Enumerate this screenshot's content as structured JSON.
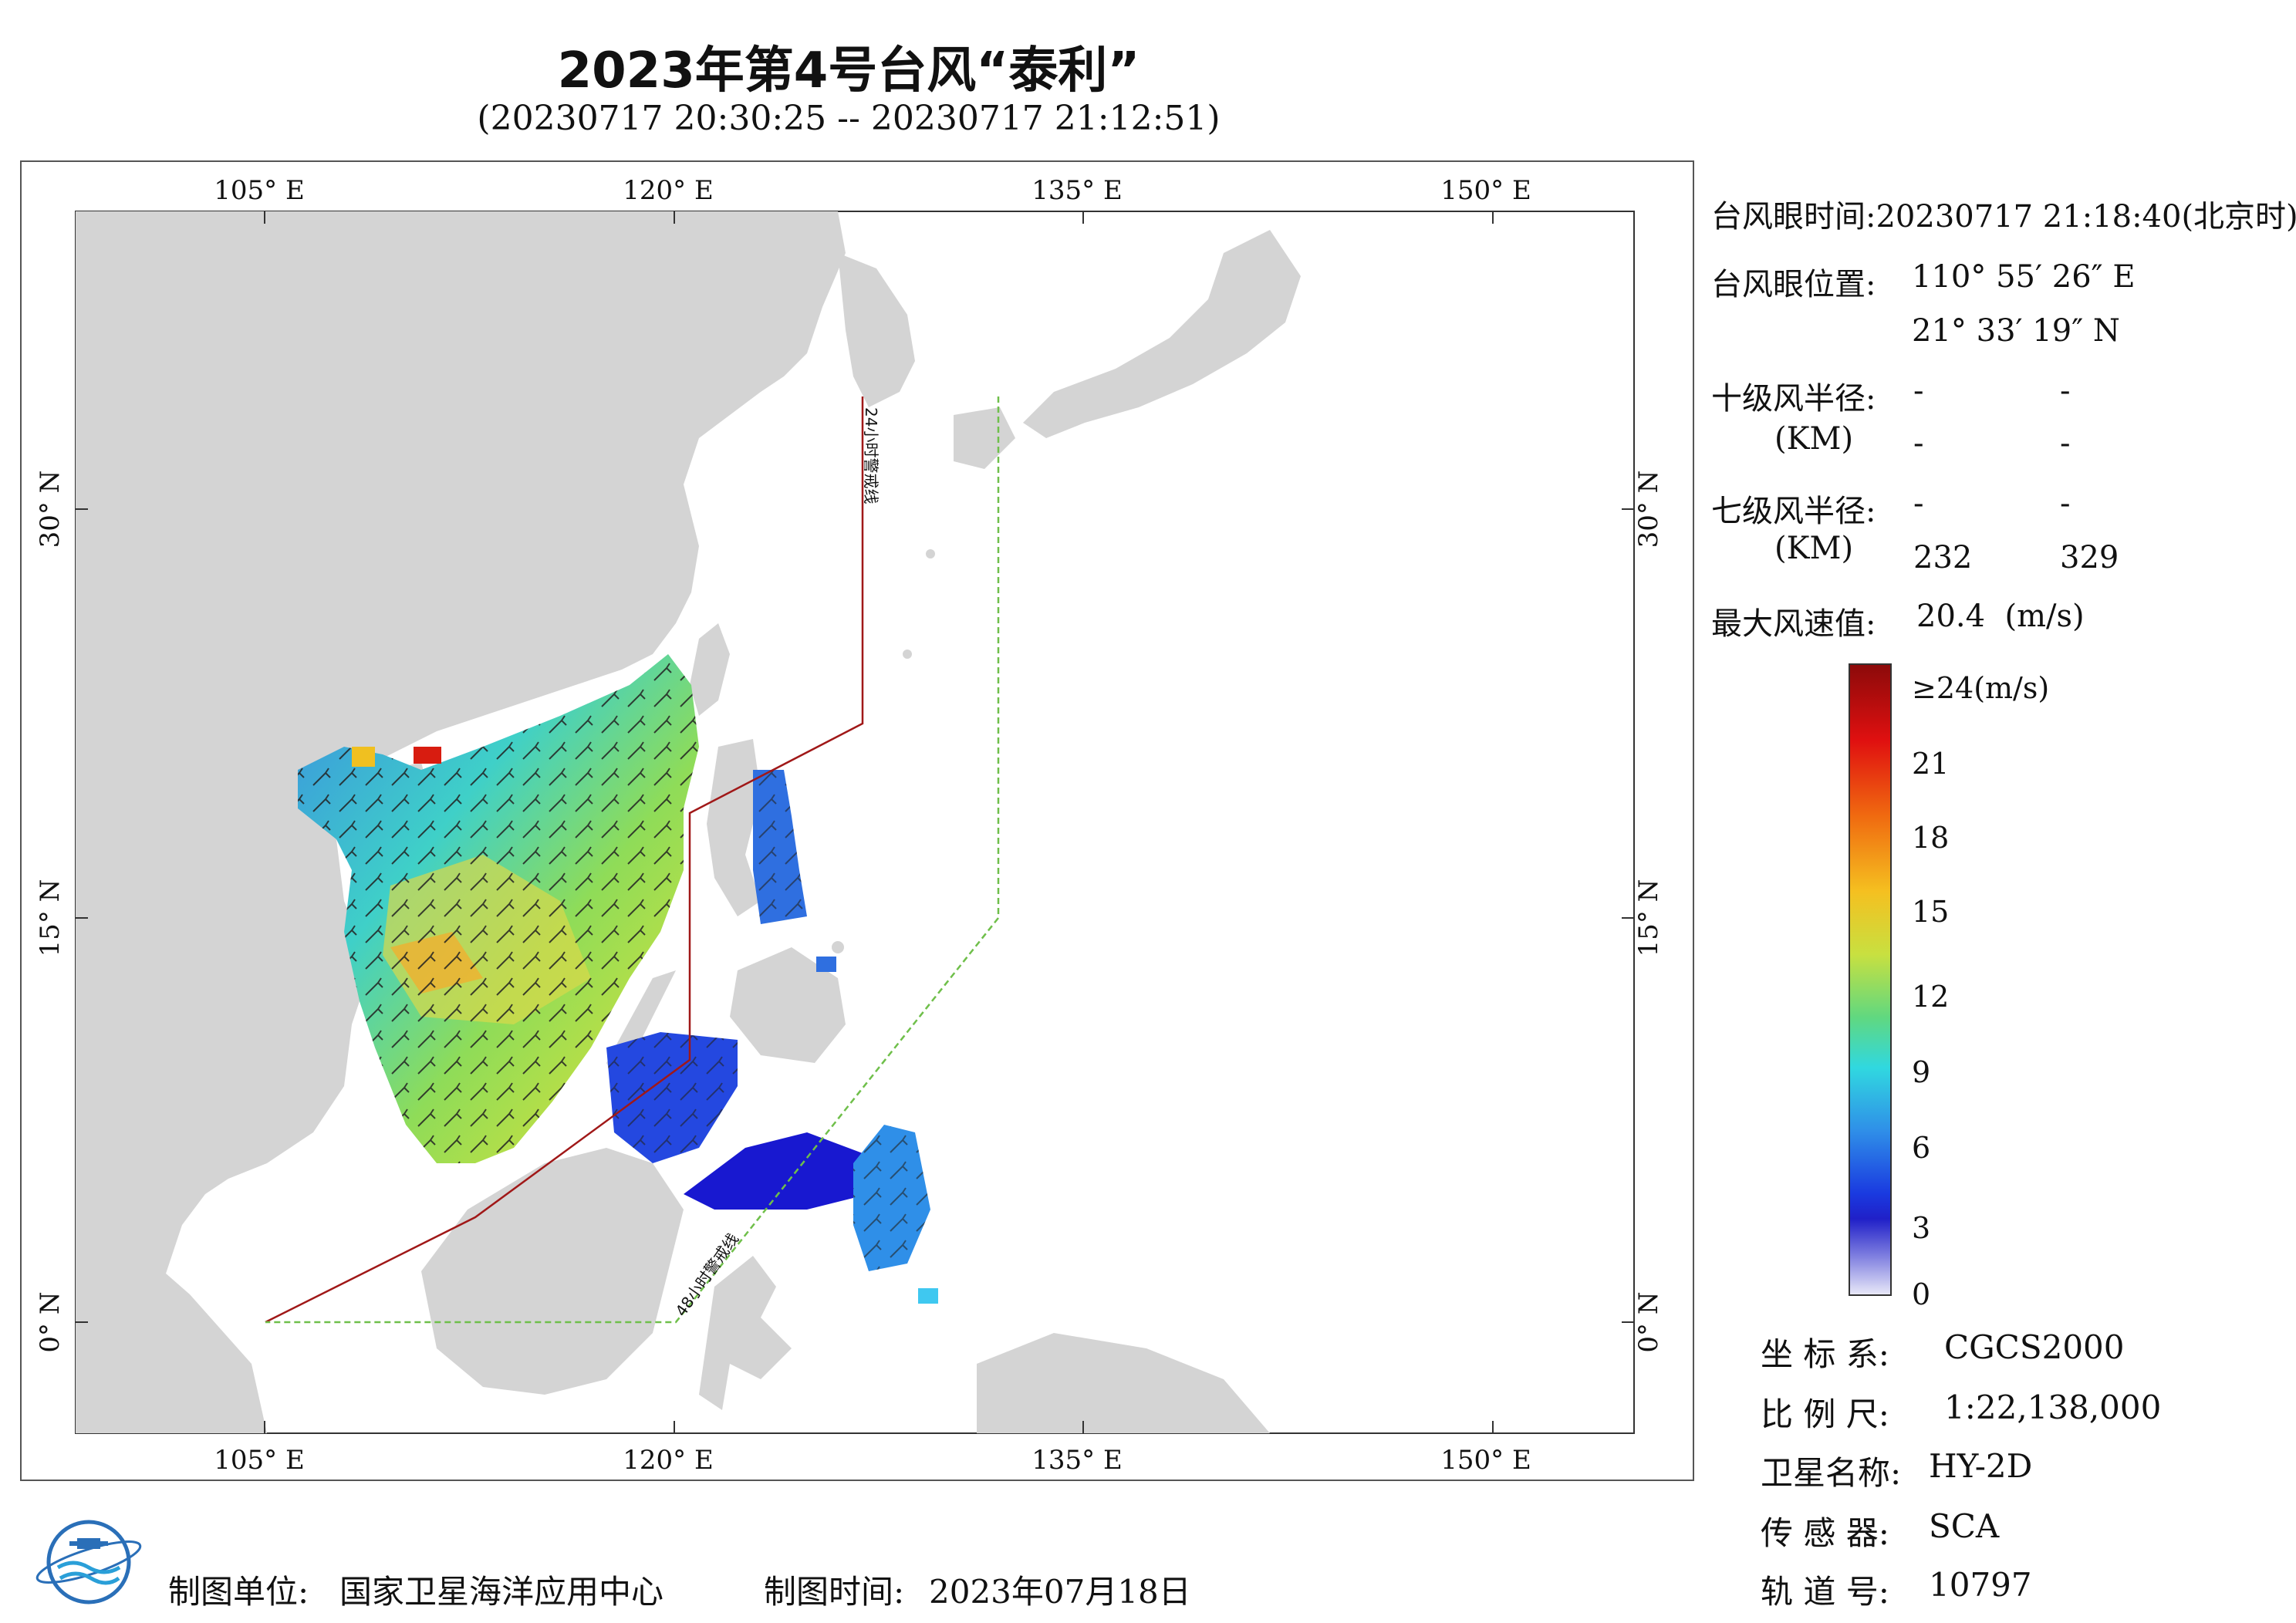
{
  "title": "2023年第4号台风“泰利”",
  "subtitle": "(20230717 20:30:25 -- 20230717 21:12:51)",
  "map": {
    "lon_ticks_top": [
      "105° E",
      "120° E",
      "135° E",
      "150° E"
    ],
    "lon_ticks_bottom": [
      "105° E",
      "120° E",
      "135° E",
      "150° E"
    ],
    "lat_ticks_left": [
      "30° N",
      "15° N",
      "0° N"
    ],
    "lat_ticks_right": [
      "30° N",
      "15° N",
      "0° N"
    ],
    "line_24h_label": "24小时警戒线",
    "line_48h_label": "48小时警戒线",
    "colors": {
      "land": "#d4d4d4",
      "ocean": "#ffffff",
      "line_24h": "#a01818",
      "line_48h": "#6fbf4a"
    }
  },
  "info": {
    "eye_time_label": "台风眼时间:",
    "eye_time_value": "20230717 21:18:40(北京时)",
    "eye_pos_label": "台风眼位置:",
    "eye_lon": "110° 55′ 26″ E",
    "eye_lat": "21° 33′ 19″ N",
    "r10_label": "十级风半径:",
    "r10_unit": "(KM)",
    "r10_values": [
      "-",
      "-",
      "-",
      "-"
    ],
    "r7_label": "七级风半径:",
    "r7_unit": "(KM)",
    "r7_values": [
      "-",
      "-",
      "232",
      "329"
    ],
    "max_wind_label": "最大风速值:",
    "max_wind_value": "20.4",
    "max_wind_unit": "(m/s)"
  },
  "colorbar": {
    "labels": [
      "≥24(m/s)",
      "21",
      "18",
      "15",
      "12",
      "9",
      "6",
      "3",
      "0"
    ]
  },
  "meta": {
    "coord_label": "坐 标 系:",
    "coord_value": "CGCS2000",
    "scale_label": "比 例 尺:",
    "scale_value": "1:22,138,000",
    "sat_label": "卫星名称:",
    "sat_value": "HY-2D",
    "sensor_label": "传 感 器:",
    "sensor_value": "SCA",
    "orbit_label": "轨 道 号:",
    "orbit_value": "10797"
  },
  "footer": {
    "maker_label": "制图单位:",
    "maker_value": "国家卫星海洋应用中心",
    "time_label": "制图时间:",
    "time_value": "2023年07月18日"
  }
}
